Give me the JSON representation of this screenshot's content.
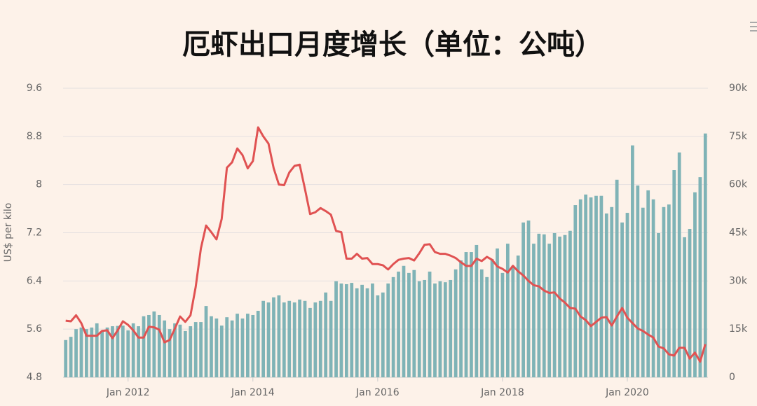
{
  "chart_data": {
    "type": "combo",
    "title": "厄虾出口月度增长（单位：公吨）",
    "y_label": "US$ per kilo",
    "categories": [
      null,
      null,
      null,
      null,
      null,
      null,
      null,
      null,
      null,
      null,
      null,
      null,
      "Jan 2012",
      null,
      null,
      null,
      null,
      null,
      null,
      null,
      null,
      null,
      null,
      null,
      null,
      null,
      null,
      null,
      null,
      null,
      null,
      null,
      null,
      null,
      null,
      null,
      "Jan 2014",
      null,
      null,
      null,
      null,
      null,
      null,
      null,
      null,
      null,
      null,
      null,
      null,
      null,
      null,
      null,
      null,
      null,
      null,
      null,
      null,
      null,
      null,
      null,
      "Jan 2016",
      null,
      null,
      null,
      null,
      null,
      null,
      null,
      null,
      null,
      null,
      null,
      null,
      null,
      null,
      null,
      null,
      null,
      null,
      null,
      null,
      null,
      null,
      null,
      "Jan 2018",
      null,
      null,
      null,
      null,
      null,
      null,
      null,
      null,
      null,
      null,
      null,
      null,
      null,
      null,
      null,
      null,
      null,
      null,
      null,
      null,
      null,
      null,
      null,
      "Jan 2020",
      null,
      null,
      null,
      null,
      null,
      null,
      null,
      null,
      null,
      null,
      null,
      null,
      null,
      null,
      null
    ],
    "series": [
      {
        "type": "bar",
        "axis": "y2",
        "color": "#7fb3b6",
        "values": [
          11600,
          12600,
          15000,
          15500,
          15000,
          15500,
          16800,
          14400,
          15500,
          15900,
          16000,
          16100,
          14600,
          16800,
          15900,
          19000,
          19400,
          20500,
          19400,
          17700,
          15000,
          16800,
          16400,
          14400,
          15900,
          17200,
          17200,
          22200,
          19000,
          18300,
          16100,
          18700,
          17700,
          19800,
          18300,
          19800,
          19400,
          20700,
          23800,
          23300,
          24900,
          25500,
          23300,
          23800,
          23300,
          24200,
          23800,
          21600,
          23300,
          23800,
          26400,
          23800,
          29900,
          29200,
          29000,
          29400,
          27700,
          28800,
          27700,
          29200,
          25500,
          26400,
          29200,
          31200,
          32900,
          34700,
          32500,
          33400,
          29900,
          30300,
          32900,
          29200,
          29900,
          29600,
          30300,
          33600,
          36400,
          39000,
          39000,
          41200,
          33600,
          31200,
          36800,
          40100,
          32500,
          41600,
          34700,
          37900,
          48200,
          48800,
          41600,
          44700,
          44500,
          41600,
          44900,
          43800,
          44300,
          45600,
          53600,
          55400,
          56900,
          56000,
          56500,
          56500,
          51000,
          53000,
          61500,
          48200,
          51200,
          72200,
          59700,
          52800,
          58200,
          55400,
          44900,
          53000,
          53800,
          64500,
          70000,
          43600,
          46200,
          57600,
          62300,
          75900
        ]
      },
      {
        "type": "line",
        "axis": "y",
        "color": "#e05252",
        "values": [
          5.74,
          5.73,
          5.83,
          5.7,
          5.49,
          5.49,
          5.49,
          5.57,
          5.58,
          5.45,
          5.58,
          5.73,
          5.67,
          5.58,
          5.46,
          5.46,
          5.64,
          5.63,
          5.59,
          5.38,
          5.42,
          5.61,
          5.81,
          5.72,
          5.83,
          6.3,
          6.94,
          7.32,
          7.21,
          7.09,
          7.43,
          8.28,
          8.37,
          8.6,
          8.49,
          8.27,
          8.39,
          8.95,
          8.8,
          8.68,
          8.27,
          8.0,
          7.99,
          8.2,
          8.31,
          8.33,
          7.93,
          7.51,
          7.54,
          7.61,
          7.56,
          7.5,
          7.23,
          7.21,
          6.77,
          6.77,
          6.85,
          6.77,
          6.78,
          6.68,
          6.68,
          6.66,
          6.59,
          6.68,
          6.75,
          6.77,
          6.78,
          6.74,
          6.86,
          7.0,
          7.01,
          6.88,
          6.85,
          6.85,
          6.82,
          6.78,
          6.71,
          6.65,
          6.65,
          6.77,
          6.73,
          6.8,
          6.75,
          6.64,
          6.6,
          6.54,
          6.65,
          6.56,
          6.49,
          6.4,
          6.33,
          6.31,
          6.24,
          6.2,
          6.21,
          6.11,
          6.04,
          5.95,
          5.94,
          5.81,
          5.75,
          5.65,
          5.72,
          5.79,
          5.8,
          5.66,
          5.81,
          5.95,
          5.79,
          5.7,
          5.61,
          5.57,
          5.51,
          5.46,
          5.31,
          5.28,
          5.18,
          5.16,
          5.29,
          5.29,
          5.11,
          5.21,
          5.06,
          5.35
        ]
      }
    ],
    "ylim": [
      4.8,
      9.6
    ],
    "yticks": [
      4.8,
      5.6,
      6.4,
      7.2,
      8,
      8.8,
      9.6
    ],
    "y2lim": [
      0,
      90000
    ],
    "y2ticks": [
      0,
      {
        "value": 15000,
        "label": "15k"
      },
      {
        "value": 30000,
        "label": "30k"
      },
      {
        "value": 45000,
        "label": "45k"
      },
      {
        "value": 60000,
        "label": "60k"
      },
      {
        "value": 75000,
        "label": "75k"
      },
      {
        "value": 90000,
        "label": "90k"
      }
    ],
    "grid": true
  }
}
